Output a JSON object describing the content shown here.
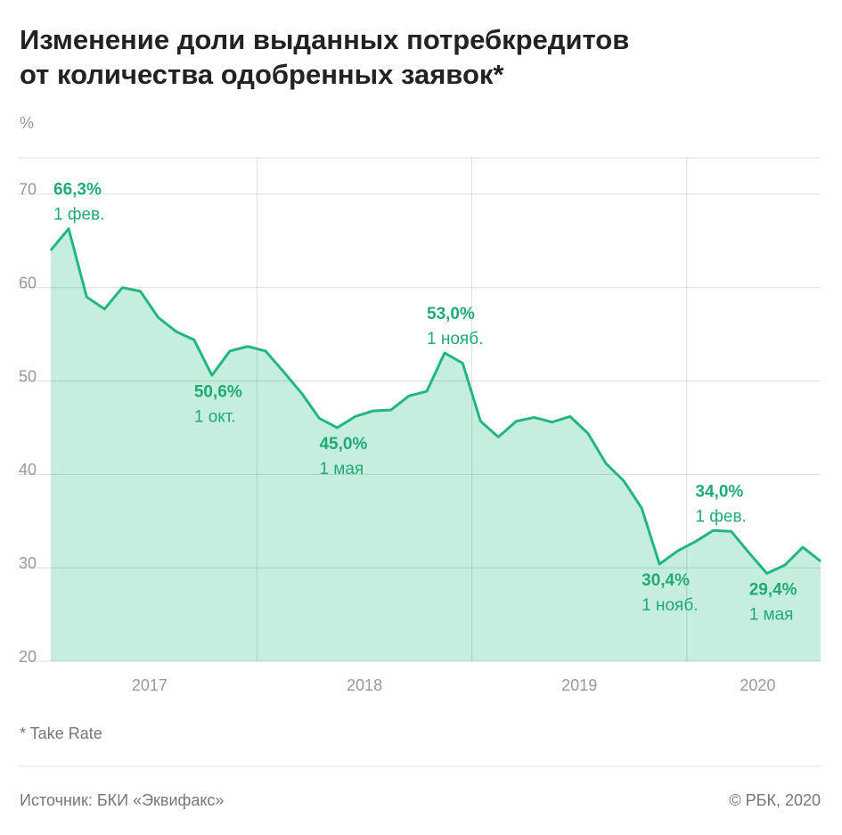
{
  "chart_data": {
    "type": "area",
    "title": [
      "Изменение доли выданных потребкредитов",
      "от количества одобренных заявок*"
    ],
    "y_unit": "%",
    "footnote": "* Take Rate",
    "source": "Источник: БКИ «Эквифакс»",
    "credit": "© РБК, 2020",
    "color": "#22b77f",
    "fill": "#c6eedf",
    "x": [
      2017.04,
      2017.123,
      2017.207,
      2017.29,
      2017.373,
      2017.457,
      2017.54,
      2017.623,
      2017.707,
      2017.79,
      2017.873,
      2017.957,
      2018.04,
      2018.123,
      2018.207,
      2018.29,
      2018.373,
      2018.457,
      2018.54,
      2018.623,
      2018.707,
      2018.79,
      2018.873,
      2018.957,
      2019.04,
      2019.123,
      2019.207,
      2019.29,
      2019.373,
      2019.457,
      2019.54,
      2019.623,
      2019.707,
      2019.79,
      2019.873,
      2019.957,
      2020.04,
      2020.123,
      2020.207,
      2020.29,
      2020.373,
      2020.457,
      2020.54,
      2020.623
    ],
    "values": [
      64.0,
      66.3,
      59.0,
      57.7,
      60.0,
      59.6,
      56.8,
      55.3,
      54.4,
      50.6,
      53.2,
      53.7,
      53.2,
      51.0,
      48.7,
      46.0,
      45.0,
      46.2,
      46.8,
      46.9,
      48.4,
      48.9,
      53.0,
      51.9,
      45.7,
      44.0,
      45.7,
      46.1,
      45.6,
      46.2,
      44.4,
      41.2,
      39.3,
      36.4,
      30.4,
      31.8,
      32.8,
      34.0,
      33.9,
      31.6,
      29.4,
      30.3,
      32.2,
      30.7
    ],
    "value_labels": [
      null,
      "66,3%",
      null,
      null,
      null,
      null,
      null,
      null,
      null,
      "50,6%",
      null,
      null,
      null,
      null,
      null,
      null,
      "45,0%",
      null,
      null,
      null,
      null,
      null,
      "53,0%",
      null,
      null,
      null,
      null,
      null,
      null,
      null,
      null,
      null,
      null,
      null,
      "30,4%",
      null,
      null,
      "34,0%",
      null,
      null,
      "29,4%",
      null,
      null,
      null
    ],
    "date_labels": [
      null,
      "1 фев.",
      null,
      null,
      null,
      null,
      null,
      null,
      null,
      "1 окт.",
      null,
      null,
      null,
      null,
      null,
      null,
      "1 мая",
      null,
      null,
      null,
      null,
      null,
      "1 нояб.",
      null,
      null,
      null,
      null,
      null,
      null,
      null,
      null,
      null,
      null,
      null,
      "1 нояб.",
      null,
      null,
      "1 фев.",
      null,
      null,
      "1 мая",
      null,
      null,
      null
    ],
    "xlim": [
      2017.04,
      2020.623
    ],
    "xticks": [
      {
        "value": 2017.5,
        "label": "2017"
      },
      {
        "value": 2018.5,
        "label": "2018"
      },
      {
        "value": 2019.5,
        "label": "2019"
      },
      {
        "value": 2020.33,
        "label": "2020"
      }
    ],
    "xgrid": [
      2018,
      2019,
      2020
    ],
    "ylim": [
      20,
      73.9
    ],
    "yticks": [
      20,
      30,
      40,
      50,
      60,
      70
    ],
    "grid": true
  }
}
